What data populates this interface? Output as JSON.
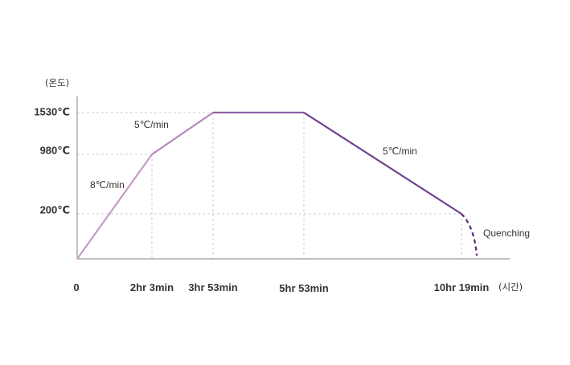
{
  "chart_data": {
    "type": "line",
    "title": "",
    "ylabel": "(온도)",
    "xlabel": "(시간)",
    "x_ticks": [
      "0",
      "2hr 3min",
      "3hr 53min",
      "5hr 53min",
      "10hr 19min"
    ],
    "y_ticks": [
      "1530℃",
      "980℃",
      "200℃"
    ],
    "points": [
      {
        "x": "0",
        "y": 0
      },
      {
        "x": "2hr 3min",
        "y": 980
      },
      {
        "x": "3hr 53min",
        "y": 1530
      },
      {
        "x": "5hr 53min",
        "y": 1530
      },
      {
        "x": "10hr 19min",
        "y": 200
      }
    ],
    "quenching_label": "Quenching",
    "rate_labels": [
      "8℃/min",
      "5℃/min",
      "5℃/min"
    ],
    "colors": {
      "segment_1": "#c79ac7",
      "segment_2": "#b486bc",
      "plateau": "#8c5fa5",
      "cooling": "#6e4390",
      "quench": "#5a2a82",
      "guide": "#cccccc",
      "axis": "#9a9a9a"
    }
  }
}
